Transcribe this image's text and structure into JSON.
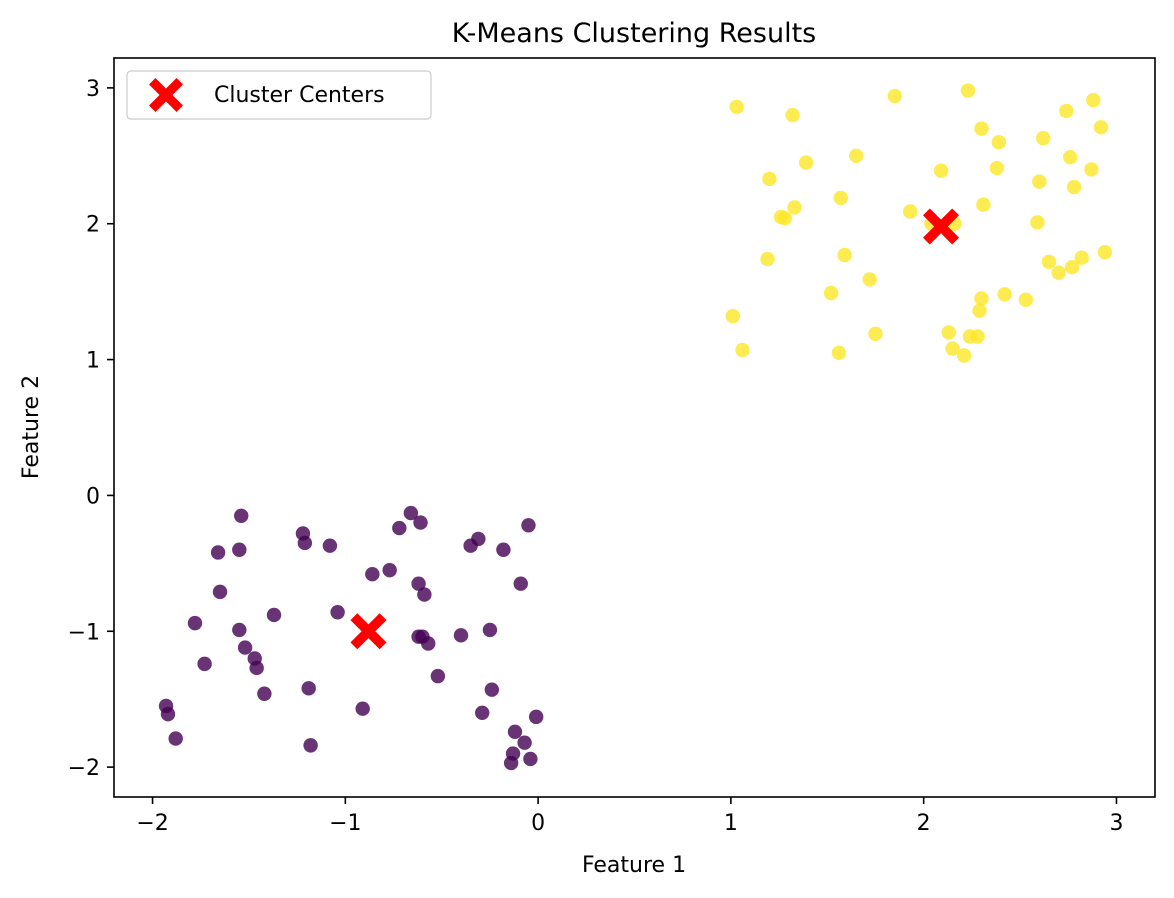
{
  "chart_data": {
    "type": "scatter",
    "title": "K-Means Clustering Results",
    "xlabel": "Feature 1",
    "ylabel": "Feature 2",
    "xlim": [
      -2.2,
      3.2
    ],
    "ylim": [
      -2.22,
      3.22
    ],
    "xticks": [
      -2,
      -1,
      0,
      1,
      2,
      3
    ],
    "xtick_labels": [
      "−2",
      "−1",
      "0",
      "1",
      "2",
      "3"
    ],
    "yticks": [
      -2,
      -1,
      0,
      1,
      2,
      3
    ],
    "ytick_labels": [
      "−2",
      "−1",
      "0",
      "1",
      "2",
      "3"
    ],
    "grid": false,
    "legend_position": "top-left",
    "colors": {
      "cluster_0": "#440154",
      "cluster_1": "#FDE725",
      "centers": "#FF0000"
    },
    "point_alpha": 0.8,
    "series": [
      {
        "cluster": 0,
        "color": "#440154",
        "x": [
          -1.93,
          -1.92,
          -1.88,
          -1.78,
          -1.73,
          -1.66,
          -1.65,
          -1.55,
          -1.55,
          -1.54,
          -1.52,
          -1.47,
          -1.46,
          -1.42,
          -1.37,
          -1.22,
          -1.21,
          -1.19,
          -1.18,
          -1.08,
          -1.04,
          -0.91,
          -0.86,
          -0.77,
          -0.72,
          -0.66,
          -0.62,
          -0.62,
          -0.61,
          -0.6,
          -0.59,
          -0.57,
          -0.52,
          -0.4,
          -0.35,
          -0.31,
          -0.29,
          -0.25,
          -0.24,
          -0.18,
          -0.14,
          -0.13,
          -0.12,
          -0.09,
          -0.07,
          -0.05,
          -0.04,
          -0.01
        ],
        "y": [
          -1.55,
          -1.61,
          -1.79,
          -0.94,
          -1.24,
          -0.42,
          -0.71,
          -0.99,
          -0.4,
          -0.15,
          -1.12,
          -1.2,
          -1.27,
          -1.46,
          -0.88,
          -0.28,
          -0.35,
          -1.42,
          -1.84,
          -0.37,
          -0.86,
          -1.57,
          -0.58,
          -0.55,
          -0.24,
          -0.13,
          -0.65,
          -1.04,
          -0.2,
          -1.04,
          -0.73,
          -1.09,
          -1.33,
          -1.03,
          -0.37,
          -0.32,
          -1.6,
          -0.99,
          -1.43,
          -0.4,
          -1.97,
          -1.9,
          -1.74,
          -0.65,
          -1.82,
          -0.22,
          -1.94,
          -1.63
        ]
      },
      {
        "cluster": 1,
        "color": "#FDE725",
        "x": [
          1.01,
          1.03,
          1.06,
          1.19,
          1.2,
          1.26,
          1.28,
          1.32,
          1.33,
          1.39,
          1.52,
          1.56,
          1.57,
          1.59,
          1.65,
          1.72,
          1.75,
          1.85,
          1.93,
          2.04,
          2.09,
          2.13,
          2.15,
          2.16,
          2.21,
          2.23,
          2.24,
          2.28,
          2.29,
          2.3,
          2.3,
          2.31,
          2.38,
          2.39,
          2.42,
          2.53,
          2.59,
          2.6,
          2.62,
          2.65,
          2.7,
          2.74,
          2.76,
          2.77,
          2.78,
          2.82,
          2.87,
          2.88,
          2.92,
          2.94
        ],
        "y": [
          1.32,
          2.86,
          1.07,
          1.74,
          2.33,
          2.05,
          2.04,
          2.8,
          2.12,
          2.45,
          1.49,
          1.05,
          2.19,
          1.77,
          2.5,
          1.59,
          1.19,
          2.94,
          2.09,
          2.0,
          2.39,
          1.2,
          1.08,
          2.0,
          1.03,
          2.98,
          1.17,
          1.17,
          1.36,
          2.7,
          1.45,
          2.14,
          2.41,
          2.6,
          1.48,
          1.44,
          2.01,
          2.31,
          2.63,
          1.72,
          1.64,
          2.83,
          2.49,
          1.68,
          2.27,
          1.75,
          2.4,
          2.91,
          2.71,
          1.79
        ]
      }
    ],
    "centers": {
      "name": "Cluster Centers",
      "marker": "X",
      "color": "#FF0000",
      "x": [
        -0.88,
        2.09
      ],
      "y": [
        -1.0,
        1.98
      ]
    }
  }
}
